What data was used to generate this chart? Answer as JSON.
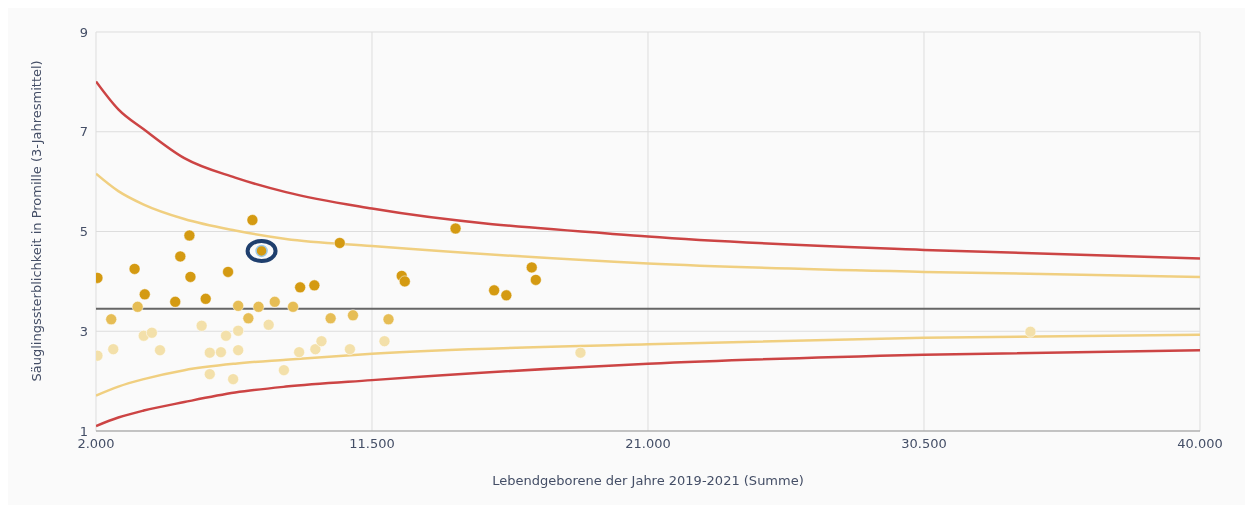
{
  "chart_data": {
    "type": "scatter",
    "xlabel": "Lebendgeborene der Jahre 2019-2021 (Summe)",
    "ylabel": "Säuglingssterblichkeit in Promille (3-Jahresmittel)",
    "xlim": [
      2000,
      40000
    ],
    "xticks": [
      {
        "value": 2000,
        "label": "2.000"
      },
      {
        "value": 11500,
        "label": "11.500"
      },
      {
        "value": 21000,
        "label": "21.000"
      },
      {
        "value": 30500,
        "label": "30.500"
      },
      {
        "value": 40000,
        "label": "40.000"
      }
    ],
    "ylim": [
      1,
      9
    ],
    "yticks": [
      1,
      3,
      5,
      7,
      9
    ],
    "grid": true,
    "marker": "circle",
    "ref_lines": [
      {
        "axis": "y",
        "value": 3.45,
        "color": "#666666"
      }
    ],
    "series": [
      {
        "type": "line",
        "marker": "none",
        "color": "#cc4444",
        "line_style": "solid",
        "x": [
          2000,
          2769,
          3643,
          5041,
          6790,
          8538,
          11500,
          21000,
          30500,
          40000
        ],
        "values": [
          8.01,
          7.45,
          7.05,
          6.47,
          6.08,
          5.79,
          5.46,
          4.9,
          4.63,
          4.46
        ]
      },
      {
        "type": "line",
        "marker": "none",
        "color": "#f0cf80",
        "line_style": "solid",
        "x": [
          2000,
          2769,
          3643,
          5041,
          6790,
          8538,
          11500,
          21000,
          30500,
          40000
        ],
        "values": [
          6.16,
          5.81,
          5.54,
          5.25,
          5.02,
          4.85,
          4.71,
          4.36,
          4.19,
          4.09
        ]
      },
      {
        "type": "line",
        "marker": "none",
        "color": "#f0cf80",
        "line_style": "solid",
        "x": [
          2000,
          2769,
          3643,
          5041,
          6790,
          8538,
          11500,
          21000,
          30500,
          40000
        ],
        "values": [
          1.71,
          1.89,
          2.04,
          2.22,
          2.35,
          2.43,
          2.55,
          2.74,
          2.87,
          2.93
        ]
      },
      {
        "type": "line",
        "marker": "none",
        "color": "#cc4444",
        "line_style": "solid",
        "x": [
          2000,
          2769,
          3643,
          5041,
          6790,
          8538,
          11500,
          21000,
          30500,
          40000
        ],
        "values": [
          1.1,
          1.27,
          1.41,
          1.58,
          1.77,
          1.89,
          2.02,
          2.35,
          2.53,
          2.62
        ]
      },
      {
        "color": "#d49a12",
        "x": [
          7384,
          5216,
          4902,
          3328,
          2050,
          5251,
          6545,
          9027,
          9516,
          14376,
          10390,
          12523,
          12628,
          15704,
          16124,
          16998,
          17138,
          3678,
          4727,
          5776
        ],
        "values": [
          5.23,
          4.92,
          4.5,
          4.25,
          4.07,
          4.09,
          4.19,
          3.88,
          3.92,
          5.06,
          4.77,
          4.11,
          4.0,
          3.82,
          3.72,
          4.28,
          4.03,
          3.74,
          3.59,
          3.65
        ]
      },
      {
        "color": "#e6bd55",
        "x": [
          3433,
          6894,
          7594,
          8153,
          8782,
          2524,
          7244,
          10076,
          10845,
          12068
        ],
        "values": [
          3.49,
          3.51,
          3.49,
          3.59,
          3.49,
          3.24,
          3.26,
          3.26,
          3.32,
          3.24
        ]
      },
      {
        "color": "#f3e0aa",
        "x": [
          5636,
          7943,
          3643,
          3923,
          6475,
          6894,
          2050,
          2594,
          4203,
          5916,
          6300,
          6894,
          5916,
          6720,
          8468,
          8992,
          9551,
          9761,
          11929,
          10740,
          18676,
          34163
        ],
        "values": [
          3.11,
          3.13,
          2.91,
          2.97,
          2.91,
          3.01,
          2.51,
          2.64,
          2.62,
          2.57,
          2.58,
          2.62,
          2.14,
          2.04,
          2.22,
          2.58,
          2.64,
          2.8,
          2.8,
          2.64,
          2.57,
          2.99
        ]
      },
      {
        "color": "#1f3f6e",
        "x": [
          7699
        ],
        "values": [
          4.61
        ]
      }
    ]
  }
}
